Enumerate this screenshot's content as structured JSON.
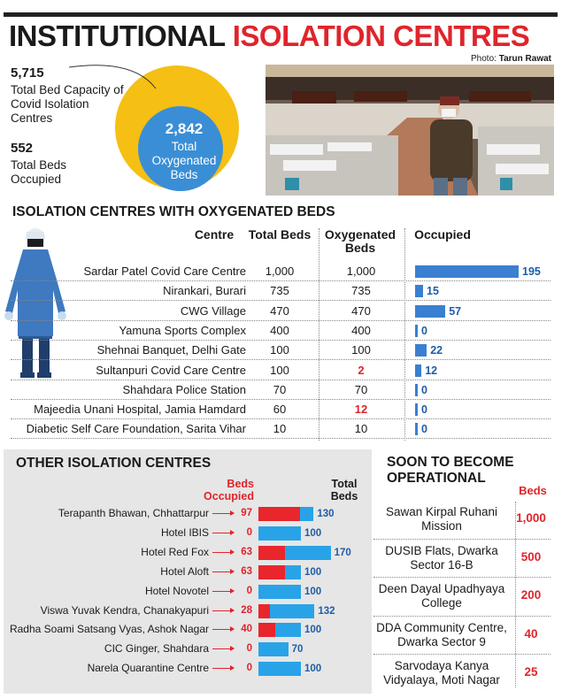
{
  "header": {
    "title_part1": "INSTITUTIONAL",
    "title_part2": "ISOLATION CENTRES",
    "photo_credit_label": "Photo:",
    "photo_credit_name": "Tarun Rawat"
  },
  "summary": {
    "capacity_value": "5,715",
    "capacity_label": "Total Bed Capacity of Covid Isolation Centres",
    "occupied_value": "552",
    "occupied_label": "Total Beds Occupied",
    "oxygen_value": "2,842",
    "oxygen_label": "Total Oxygenated Beds",
    "colors": {
      "outer_circle": "#f5bf14",
      "inner_circle": "#3a8ed6"
    }
  },
  "oxygen_section": {
    "title": "ISOLATION CENTRES WITH OXYGENATED BEDS",
    "headers": {
      "centre": "Centre",
      "total": "Total Beds",
      "oxygenated": "Oxygenated Beds",
      "occupied": "Occupied"
    }
  },
  "other_section": {
    "title": "OTHER ISOLATION CENTRES",
    "occupied_header": "Beds Occupied",
    "total_header": "Total Beds"
  },
  "soon_section": {
    "title": "SOON TO BECOME OPERATIONAL",
    "beds_header": "Beds",
    "items": [
      {
        "name": "Sawan Kirpal Ruhani Mission",
        "beds": "1,000"
      },
      {
        "name": "DUSIB Flats, Dwarka Sector 16-B",
        "beds": "500"
      },
      {
        "name": "Deen Dayal Upadhyaya College",
        "beds": "200"
      },
      {
        "name": "DDA Community Centre, Dwarka Sector 9",
        "beds": "40"
      },
      {
        "name": "Sarvodaya Kanya Vidyalaya, Moti Nagar",
        "beds": "25"
      }
    ]
  },
  "chart_data": [
    {
      "type": "table",
      "title": "ISOLATION CENTRES WITH OXYGENATED BEDS",
      "columns": [
        "Centre",
        "Total Beds",
        "Oxygenated Beds",
        "Occupied"
      ],
      "rows": [
        {
          "centre": "Sardar Patel Covid Care Centre",
          "total": "1,000",
          "oxygenated": "1,000",
          "occupied": 195,
          "oxy_highlight": false
        },
        {
          "centre": "Nirankari, Burari",
          "total": "735",
          "oxygenated": "735",
          "occupied": 15,
          "oxy_highlight": false
        },
        {
          "centre": "CWG Village",
          "total": "470",
          "oxygenated": "470",
          "occupied": 57,
          "oxy_highlight": false
        },
        {
          "centre": "Yamuna Sports Complex",
          "total": "400",
          "oxygenated": "400",
          "occupied": 0,
          "oxy_highlight": false
        },
        {
          "centre": "Shehnai Banquet, Delhi Gate",
          "total": "100",
          "oxygenated": "100",
          "occupied": 22,
          "oxy_highlight": false
        },
        {
          "centre": "Sultanpuri Covid Care Centre",
          "total": "100",
          "oxygenated": "2",
          "occupied": 12,
          "oxy_highlight": true
        },
        {
          "centre": "Shahdara Police Station",
          "total": "70",
          "oxygenated": "70",
          "occupied": 0,
          "oxy_highlight": false
        },
        {
          "centre": "Majeedia Unani Hospital, Jamia Hamdard",
          "total": "60",
          "oxygenated": "12",
          "occupied": 0,
          "oxy_highlight": true
        },
        {
          "centre": "Diabetic Self Care Foundation, Sarita Vihar",
          "total": "10",
          "oxygenated": "10",
          "occupied": 0,
          "oxy_highlight": false
        }
      ],
      "colors": {
        "occupied_bar": "#3b7fd0"
      }
    },
    {
      "type": "bar",
      "title": "OTHER ISOLATION CENTRES",
      "categories": [
        "Terapanth Bhawan, Chhattarpur",
        "Hotel IBIS",
        "Hotel Red Fox",
        "Hotel Aloft",
        "Hotel Novotel",
        "Viswa Yuvak Kendra, Chanakyapuri",
        "Radha Soami Satsang Vyas, Ashok Nagar",
        "CIC Ginger, Shahdara",
        "Narela Quarantine Centre"
      ],
      "series": [
        {
          "name": "Beds Occupied",
          "values": [
            97,
            0,
            63,
            63,
            0,
            28,
            40,
            0,
            0
          ],
          "color": "#e8262c"
        },
        {
          "name": "Total Beds",
          "values": [
            130,
            100,
            170,
            100,
            100,
            132,
            100,
            70,
            100
          ],
          "color": "#29a3e8"
        }
      ]
    }
  ]
}
